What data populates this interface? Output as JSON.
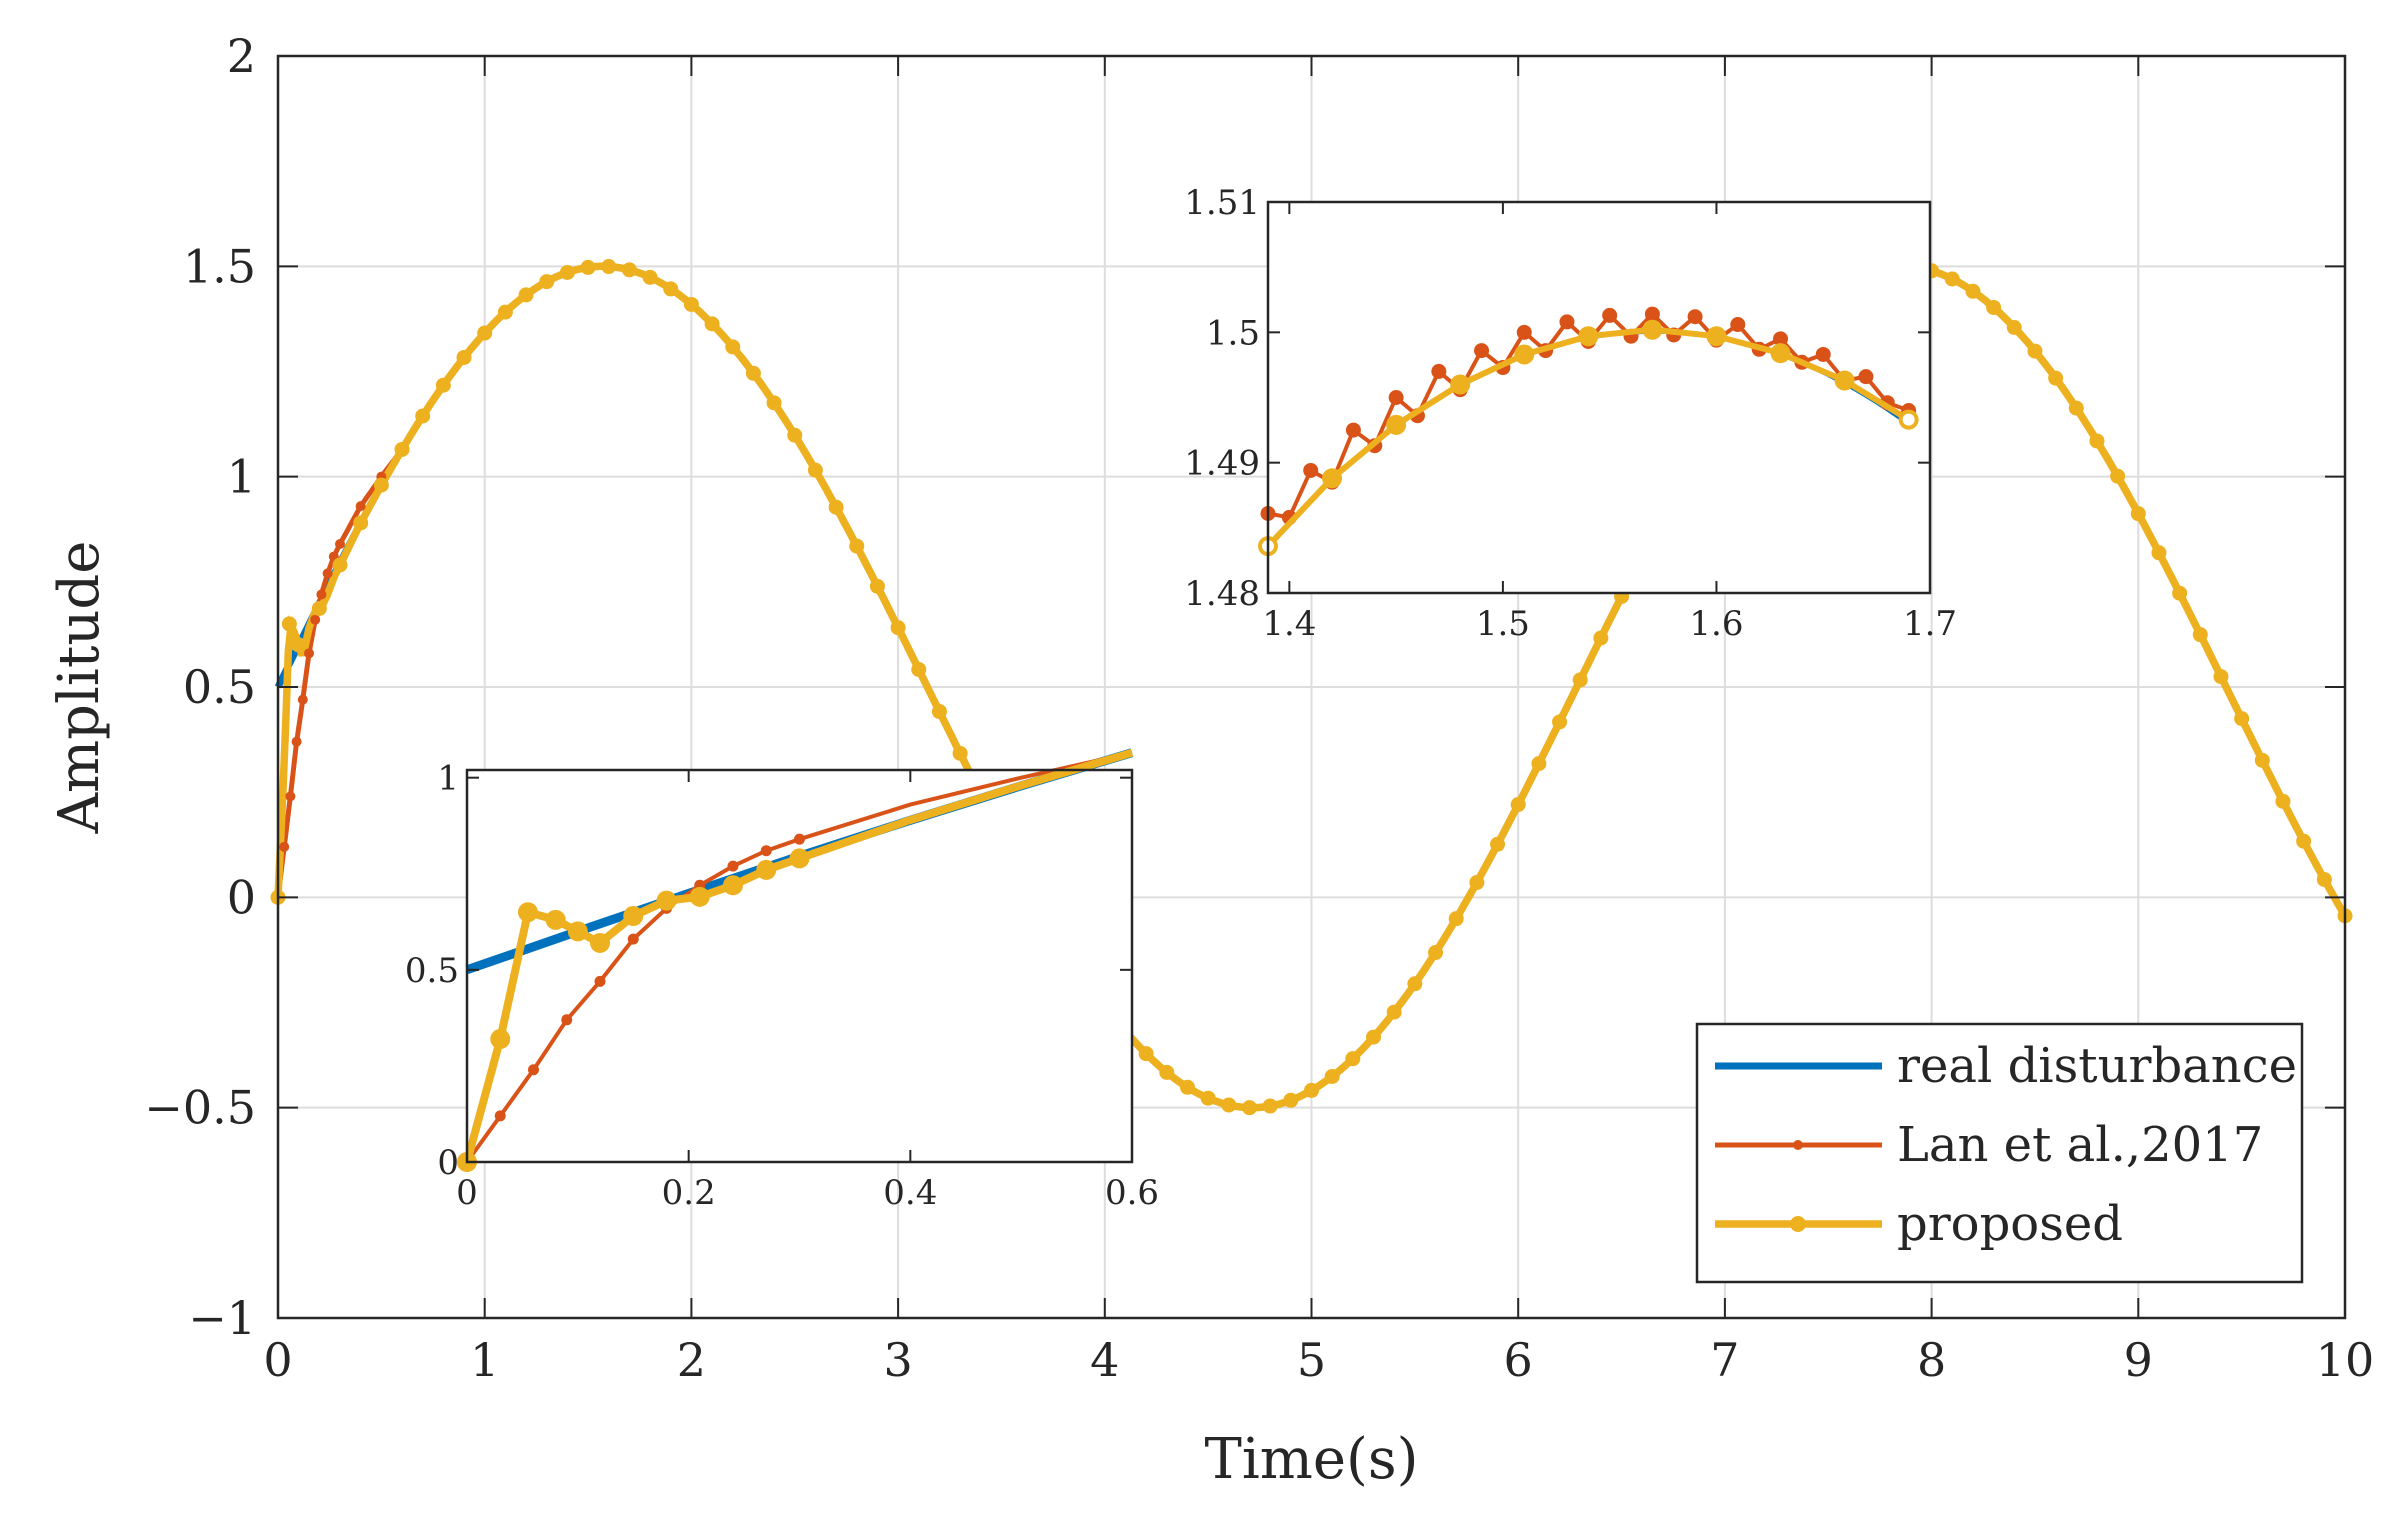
{
  "colors": {
    "real": "#0072BD",
    "lan": "#D95319",
    "proposed": "#EDB120",
    "axis": "#262626",
    "grid": "#dddddd"
  },
  "chart_data": [
    {
      "id": "main",
      "type": "line",
      "title": "",
      "xlabel": "Time(s)",
      "ylabel": "Amplitude",
      "xlim": [
        0,
        10
      ],
      "ylim": [
        -1,
        2
      ],
      "xticks": [
        0,
        1,
        2,
        3,
        4,
        5,
        6,
        7,
        8,
        9,
        10
      ],
      "yticks": [
        -1,
        -0.5,
        0,
        0.5,
        1,
        1.5,
        2
      ],
      "xtick_labels": [
        "0",
        "1",
        "2",
        "3",
        "4",
        "5",
        "6",
        "7",
        "8",
        "9",
        "10"
      ],
      "ytick_labels": [
        "−1",
        "−0.5",
        "0",
        "0.5",
        "1",
        "1.5",
        "2"
      ],
      "grid": true,
      "series": [
        {
          "name": "real disturbance",
          "formula": "0.5 + sin(t)",
          "marker": "none"
        },
        {
          "name": "Lan et al.,2017",
          "formula": "tracks 0.5 + sin(t) after a fast rise from 0 over ~0.6 s",
          "marker": "small-dot"
        },
        {
          "name": "proposed",
          "formula": "tracks 0.5 + sin(t) after a brief overshoot (peak ~0.65 at t≈0.06 s)",
          "marker": "dot"
        }
      ],
      "legend": {
        "position": "bottom-right",
        "entries": [
          "real disturbance",
          "Lan et al.,2017",
          "proposed"
        ]
      }
    },
    {
      "id": "inset-start",
      "type": "line",
      "description_role": "zoom of transient",
      "xlim": [
        0,
        0.6
      ],
      "ylim": [
        0,
        1.02
      ],
      "xticks": [
        0,
        0.2,
        0.4,
        0.6
      ],
      "yticks": [
        0,
        0.5,
        1
      ],
      "xtick_labels": [
        "0",
        "0.2",
        "0.4",
        "0.6"
      ],
      "ytick_labels": [
        "0",
        "0.5",
        "1"
      ],
      "series": [
        {
          "name": "real disturbance",
          "x": [
            0,
            0.1,
            0.2,
            0.3,
            0.4,
            0.5,
            0.6
          ],
          "y": [
            0.5,
            0.6,
            0.699,
            0.796,
            0.889,
            0.979,
            1.065
          ]
        },
        {
          "name": "Lan et al.,2017",
          "x": [
            0,
            0.03,
            0.06,
            0.09,
            0.12,
            0.15,
            0.18,
            0.21,
            0.24,
            0.27,
            0.3,
            0.4,
            0.5,
            0.6
          ],
          "y": [
            0,
            0.12,
            0.24,
            0.37,
            0.47,
            0.58,
            0.66,
            0.72,
            0.77,
            0.81,
            0.84,
            0.93,
            1.0,
            1.065
          ]
        },
        {
          "name": "proposed",
          "x": [
            0,
            0.03,
            0.055,
            0.08,
            0.1,
            0.12,
            0.15,
            0.18,
            0.21,
            0.24,
            0.27,
            0.3,
            0.4,
            0.5,
            0.6
          ],
          "y": [
            0,
            0.32,
            0.65,
            0.63,
            0.6,
            0.57,
            0.64,
            0.68,
            0.69,
            0.72,
            0.76,
            0.79,
            0.89,
            0.98,
            1.065
          ]
        }
      ]
    },
    {
      "id": "inset-peak",
      "type": "line",
      "description_role": "zoom near peak",
      "xlim": [
        1.39,
        1.7
      ],
      "ylim": [
        1.48,
        1.51
      ],
      "xticks": [
        1.4,
        1.5,
        1.6,
        1.7
      ],
      "yticks": [
        1.48,
        1.49,
        1.5,
        1.51
      ],
      "xtick_labels": [
        "1.4",
        "1.5",
        "1.6",
        "1.7"
      ],
      "ytick_labels": [
        "1.48",
        "1.49",
        "1.5",
        "1.51"
      ],
      "series": [
        {
          "name": "real disturbance",
          "formula": "0.5 + sin(t)"
        },
        {
          "name": "Lan et al.,2017",
          "x": [
            1.39,
            1.4,
            1.41,
            1.42,
            1.43,
            1.44,
            1.45,
            1.46,
            1.47,
            1.48,
            1.49,
            1.5,
            1.51,
            1.52,
            1.53,
            1.54,
            1.55,
            1.56,
            1.57,
            1.58,
            1.59,
            1.6,
            1.61,
            1.62,
            1.63,
            1.64,
            1.65,
            1.66,
            1.67,
            1.68,
            1.69
          ],
          "y": [
            1.4861,
            1.4858,
            1.4894,
            1.4885,
            1.4925,
            1.4913,
            1.495,
            1.4936,
            1.497,
            1.4956,
            1.4986,
            1.4973,
            1.5,
            1.4986,
            1.5008,
            1.4993,
            1.5013,
            1.4997,
            1.5014,
            1.4998,
            1.5012,
            1.4994,
            1.5006,
            1.4987,
            1.4995,
            1.4977,
            1.4983,
            1.4963,
            1.4966,
            1.4946,
            1.494
          ]
        },
        {
          "name": "proposed",
          "x": [
            1.39,
            1.42,
            1.45,
            1.48,
            1.51,
            1.54,
            1.57,
            1.6,
            1.63,
            1.66,
            1.69
          ],
          "y": [
            1.4836,
            1.4888,
            1.4929,
            1.496,
            1.4983,
            1.4997,
            1.5002,
            1.4997,
            1.4984,
            1.4963,
            1.4933
          ]
        }
      ]
    }
  ]
}
